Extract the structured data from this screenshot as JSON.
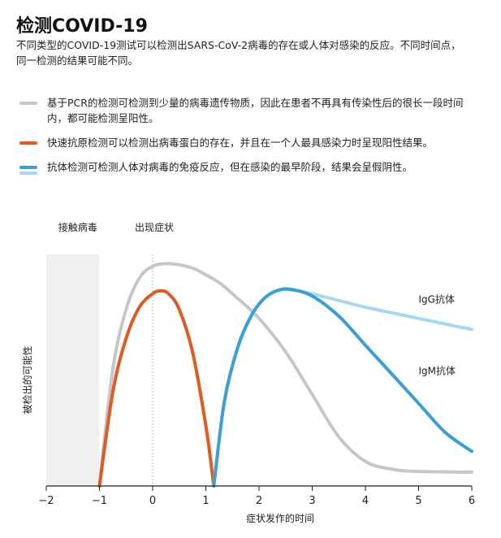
{
  "title": "检测COVID-19",
  "subtitle": "不同类型的COVID-19测试可以检测出SARS-CoV-2病毒的存在或人体对感染的反应。不同时间点，同一检测的结果可能不同。",
  "legend": [
    {
      "label": "基于PCR的检测可检测到少量的病毒遗传物质，因此在患者不再具有传染性后的很长一段时间内，都可能检测呈阳性。",
      "colors": [
        "#c3c6cb"
      ]
    },
    {
      "label": "快速抗原检测可以检测出病毒蛋白的存在，并且在一个人最具感染力时呈现阳性结果。",
      "colors": [
        "#e05a24"
      ]
    },
    {
      "label": "抗体检测可检测人体对病毒的免疫反应，但在感染的最早阶段，结果会呈假阴性。",
      "colors": [
        "#3a9fd6",
        "#a8d8f0"
      ]
    }
  ],
  "chart_data": {
    "type": "line",
    "xlabel": "症状发作的时间",
    "ylabel": "被检出的可能性",
    "xlim": [
      -2,
      6
    ],
    "ylim": [
      0,
      1
    ],
    "x_ticks": [
      "−2",
      "−1",
      "0",
      "1",
      "2",
      "3",
      "4",
      "5",
      "6"
    ],
    "x_tick_values": [
      -2,
      -1,
      0,
      1,
      2,
      3,
      4,
      5,
      6
    ],
    "region_label": "接触病毒",
    "region": [
      -2,
      -1
    ],
    "marker_label": "出现症状",
    "marker_x": 0,
    "series": [
      {
        "name": "PCR",
        "color": "#c3c6cb",
        "x": [
          -1,
          -0.75,
          -0.5,
          -0.25,
          0,
          0.25,
          0.5,
          0.75,
          1,
          1.25,
          1.5,
          2,
          2.5,
          3,
          3.5,
          4,
          4.5,
          5,
          6
        ],
        "y": [
          0,
          0.52,
          0.79,
          0.93,
          0.983,
          0.995,
          0.99,
          0.975,
          0.945,
          0.91,
          0.86,
          0.75,
          0.6,
          0.41,
          0.22,
          0.11,
          0.075,
          0.065,
          0.062
        ]
      },
      {
        "name": "抗原",
        "color": "#e05a24",
        "x": [
          -1,
          -0.75,
          -0.5,
          -0.25,
          0,
          0.15,
          0.3,
          0.5,
          0.75,
          1,
          1.15
        ],
        "y": [
          0,
          0.42,
          0.66,
          0.8,
          0.86,
          0.873,
          0.86,
          0.79,
          0.6,
          0.27,
          0
        ]
      },
      {
        "name": "IgG抗体",
        "color": "#a8d8f0",
        "x": [
          1.15,
          1.35,
          1.6,
          1.85,
          2.1,
          2.35,
          2.6,
          3,
          3.5,
          4,
          5,
          6
        ],
        "y": [
          0,
          0.38,
          0.62,
          0.76,
          0.84,
          0.875,
          0.878,
          0.86,
          0.83,
          0.8,
          0.75,
          0.7
        ]
      },
      {
        "name": "IgM抗体",
        "color": "#3a9fd6",
        "x": [
          1.15,
          1.35,
          1.6,
          1.85,
          2.1,
          2.35,
          2.6,
          3,
          3.5,
          4,
          4.5,
          5,
          5.5,
          6
        ],
        "y": [
          0,
          0.38,
          0.62,
          0.76,
          0.84,
          0.875,
          0.88,
          0.85,
          0.76,
          0.63,
          0.5,
          0.37,
          0.24,
          0.155
        ]
      }
    ],
    "series_labels": [
      {
        "text": "IgG抗体",
        "x": 5,
        "y": 0.82
      },
      {
        "text": "IgM抗体",
        "x": 5,
        "y": 0.5
      }
    ]
  }
}
